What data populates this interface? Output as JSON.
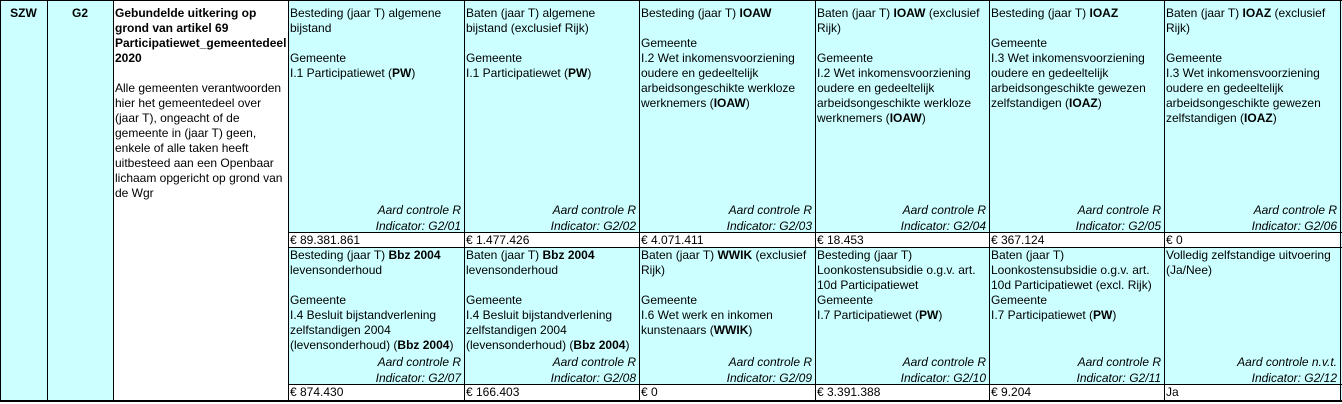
{
  "colors": {
    "cyan": "#ccffff",
    "grid": "#000000",
    "white": "#ffffff"
  },
  "row": {
    "ministry": "SZW",
    "code": "G2",
    "title": "Gebundelde uitkering op grond van artikel 69 Participatiewet_gemeentedeel 2020",
    "description": "Alle gemeenten verantwoorden hier het gemeentedeel over (jaar T), ongeacht of de gemeente in (jaar T) geen, enkele of alle taken heeft uitbesteed aan een Openbaar lichaam opgericht op grond van de Wgr"
  },
  "indicators": [
    {
      "id": "G2/01",
      "label_pre": "Besteding (jaar T) algemene bijstand",
      "label_bold": "",
      "label_post": "",
      "sub_pre": "I.1 Participatiewet (",
      "sub_bold": "PW",
      "sub_post": ")",
      "entity": "Gemeente",
      "control": "Aard controle R",
      "indicator": "Indicator: G2/01",
      "value": "€ 89.381.861"
    },
    {
      "id": "G2/02",
      "label_pre": "Baten (jaar T) algemene bijstand (exclusief Rijk)",
      "label_bold": "",
      "label_post": "",
      "sub_pre": "I.1 Participatiewet (",
      "sub_bold": "PW",
      "sub_post": ")",
      "entity": "Gemeente",
      "control": "Aard controle R",
      "indicator": "Indicator: G2/02",
      "value": "€ 1.477.426"
    },
    {
      "id": "G2/03",
      "label_pre": "Besteding (jaar T) ",
      "label_bold": "IOAW",
      "label_post": "",
      "sub_pre": "I.2 Wet inkomensvoorziening oudere en gedeeltelijk arbeidsongeschikte werkloze werknemers (",
      "sub_bold": "IOAW",
      "sub_post": ")",
      "entity": "Gemeente",
      "control": "Aard controle R",
      "indicator": "Indicator: G2/03",
      "value": "€ 4.071.411"
    },
    {
      "id": "G2/04",
      "label_pre": "Baten (jaar T) ",
      "label_bold": "IOAW",
      "label_post": " (exclusief Rijk)",
      "sub_pre": "I.2 Wet inkomensvoorziening oudere en gedeeltelijk arbeidsongeschikte werkloze werknemers (",
      "sub_bold": "IOAW",
      "sub_post": ")",
      "entity": "Gemeente",
      "control": "Aard controle R",
      "indicator": "Indicator: G2/04",
      "value": "€ 18.453"
    },
    {
      "id": "G2/05",
      "label_pre": "Besteding (jaar T) ",
      "label_bold": "IOAZ",
      "label_post": "",
      "sub_pre": "I.3 Wet inkomensvoorziening oudere en gedeeltelijk arbeidsongeschikte gewezen zelfstandigen (",
      "sub_bold": "IOAZ",
      "sub_post": ")",
      "entity": "Gemeente",
      "control": "Aard controle R",
      "indicator": "Indicator: G2/05",
      "value": "€ 367.124"
    },
    {
      "id": "G2/06",
      "label_pre": "Baten (jaar T) ",
      "label_bold": "IOAZ",
      "label_post": " (exclusief Rijk)",
      "sub_pre": "I.3 Wet inkomensvoorziening oudere en gedeeltelijk arbeidsongeschikte gewezen zelfstandigen (",
      "sub_bold": "IOAZ",
      "sub_post": ")",
      "entity": "Gemeente",
      "control": "Aard controle R",
      "indicator": "Indicator: G2/06",
      "value": "€ 0"
    },
    {
      "id": "G2/07",
      "label_pre": "Besteding (jaar T) ",
      "label_bold": "Bbz 2004",
      "label_post": " levensonderhoud",
      "sub_pre": "I.4 Besluit bijstandverlening zelfstandigen 2004 (levensonderhoud) (",
      "sub_bold": "Bbz 2004",
      "sub_post": ")",
      "entity": "Gemeente",
      "control": "Aard controle R",
      "indicator": "Indicator: G2/07",
      "value": "€ 874.430"
    },
    {
      "id": "G2/08",
      "label_pre": "Baten (jaar T) ",
      "label_bold": "Bbz 2004",
      "label_post": " levensonderhoud",
      "sub_pre": "I.4 Besluit bijstandverlening zelfstandigen 2004 (levensonderhoud) (",
      "sub_bold": "Bbz 2004",
      "sub_post": ")",
      "entity": "Gemeente",
      "control": "Aard controle R",
      "indicator": "Indicator: G2/08",
      "value": "€ 166.403"
    },
    {
      "id": "G2/09",
      "label_pre": "Baten (jaar T) ",
      "label_bold": "WWIK",
      "label_post": " (exclusief Rijk)",
      "sub_pre": "I.6 Wet werk en inkomen kunstenaars (",
      "sub_bold": "WWIK",
      "sub_post": ")",
      "entity": "Gemeente",
      "control": "Aard controle R",
      "indicator": "Indicator: G2/09",
      "value": "€ 0"
    },
    {
      "id": "G2/10",
      "label_pre": "Besteding (jaar T) Loonkostensubsidie o.g.v. art. 10d Participatiewet",
      "label_bold": "",
      "label_post": "",
      "sub_pre": "I.7 Participatiewet (",
      "sub_bold": "PW",
      "sub_post": ")",
      "entity": "Gemeente",
      "control": "Aard controle R",
      "indicator": "Indicator: G2/10",
      "value": "€ 3.391.388"
    },
    {
      "id": "G2/11",
      "label_pre": "Baten (jaar T) Loonkostensubsidie o.g.v. art. 10d Participatiewet (excl. Rijk)",
      "label_bold": "",
      "label_post": "",
      "sub_pre": "I.7 Participatiewet (",
      "sub_bold": "PW",
      "sub_post": ")",
      "entity": "Gemeente",
      "control": "Aard controle R",
      "indicator": "Indicator: G2/11",
      "value": "€ 9.204"
    },
    {
      "id": "G2/12",
      "label_pre": "Volledig zelfstandige uitvoering (Ja/Nee)",
      "label_bold": "",
      "label_post": "",
      "sub_pre": "",
      "sub_bold": "",
      "sub_post": "",
      "entity": "",
      "control": "Aard controle n.v.t.",
      "indicator": "Indicator: G2/12",
      "value": "Ja"
    }
  ]
}
